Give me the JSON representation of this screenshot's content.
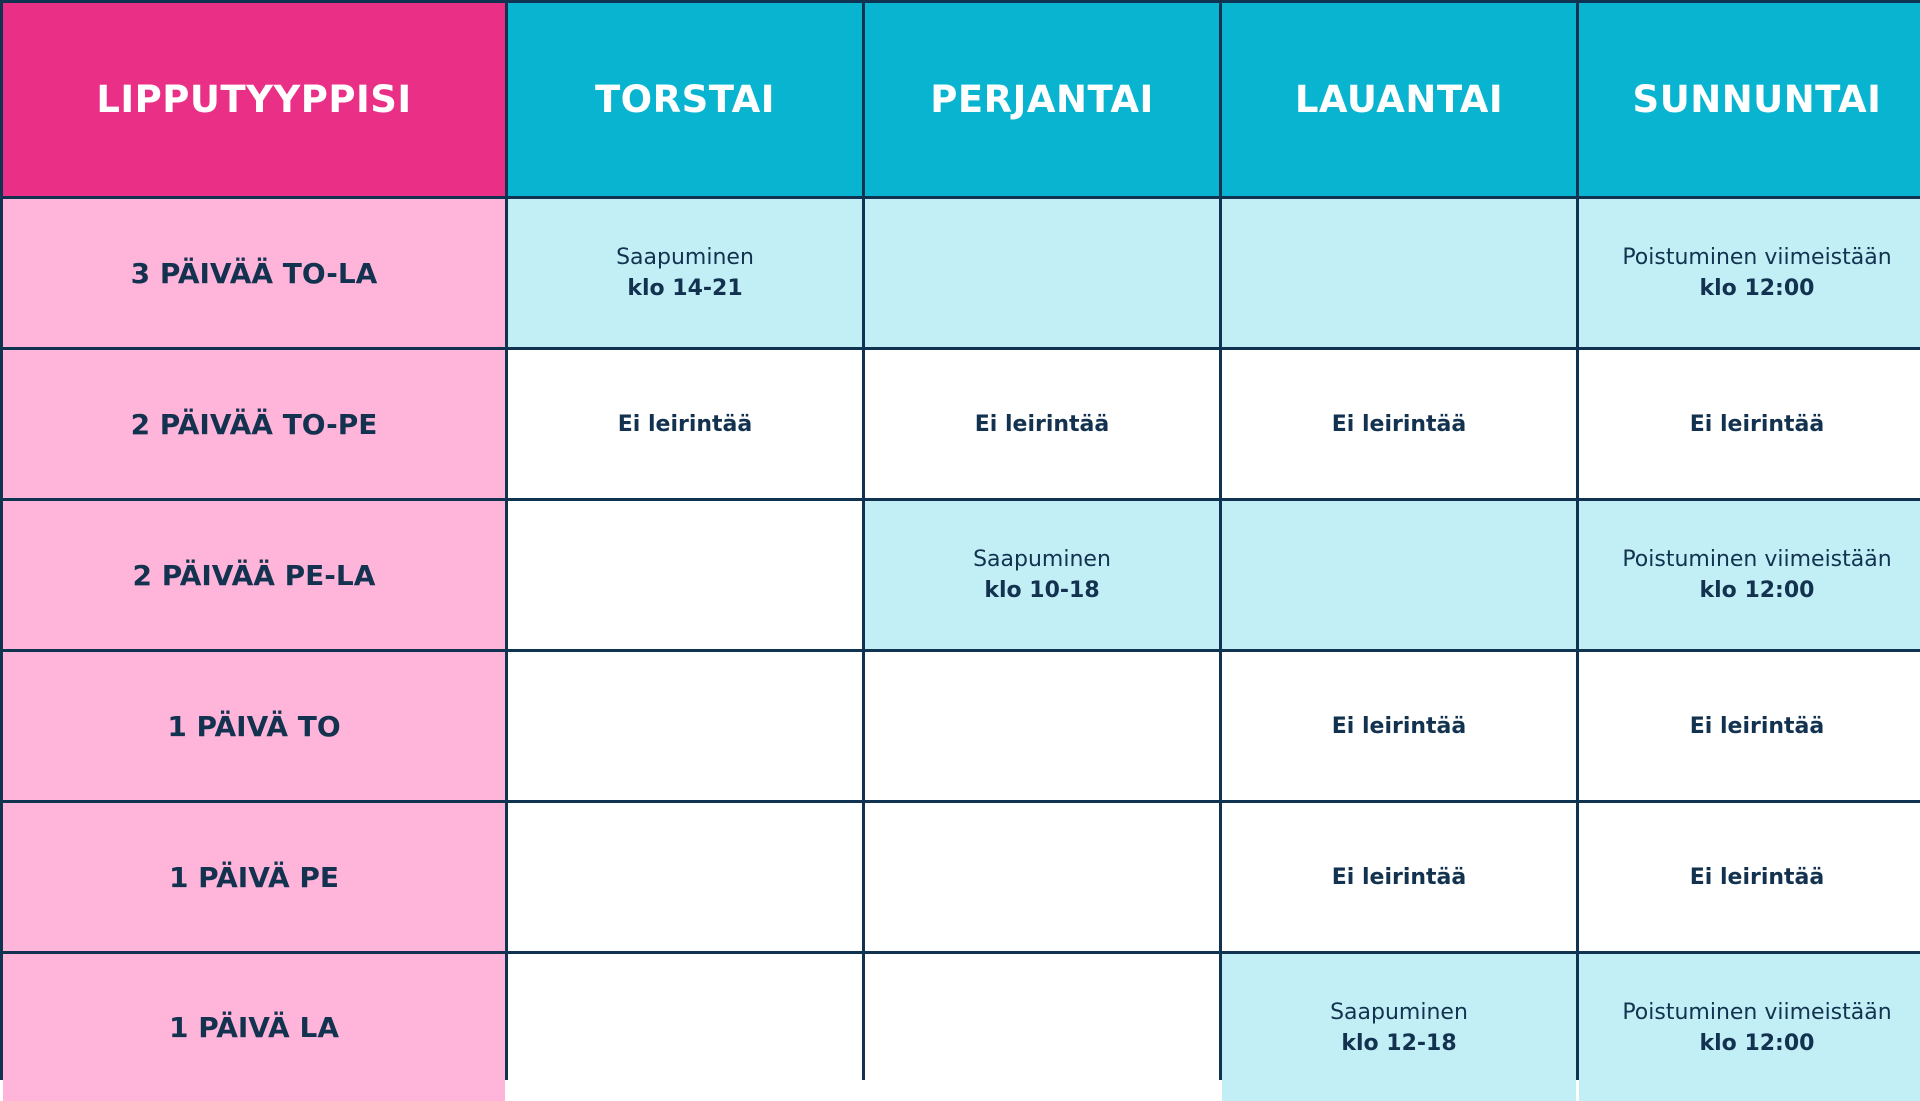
{
  "colors": {
    "header_type_bg": "#ea2f86",
    "header_day_bg": "#08b4cf",
    "row_label_bg": "#ffb5d9",
    "highlight_bg": "#c2eff6",
    "plain_bg": "#ffffff",
    "grid_line": "#0f3350",
    "text": "#12324f"
  },
  "headers": [
    "LIPPUTYYPPISI",
    "TORSTAI",
    "PERJANTAI",
    "LAUANTAI",
    "SUNNUNTAI"
  ],
  "rows": [
    {
      "label": "3 PÄIVÄÄ TO-LA",
      "cells": [
        {
          "highlight": true,
          "line1": "Saapuminen",
          "line2": "klo 14-21"
        },
        {
          "highlight": true,
          "line1": "",
          "line2": ""
        },
        {
          "highlight": true,
          "line1": "",
          "line2": ""
        },
        {
          "highlight": true,
          "line1": "Poistuminen viimeistään",
          "line2": "klo 12:00"
        }
      ]
    },
    {
      "label": "2 PÄIVÄÄ TO-PE",
      "cells": [
        {
          "highlight": false,
          "line1": "",
          "line2": "Ei leirintää"
        },
        {
          "highlight": false,
          "line1": "",
          "line2": "Ei leirintää"
        },
        {
          "highlight": false,
          "line1": "",
          "line2": "Ei leirintää"
        },
        {
          "highlight": false,
          "line1": "",
          "line2": "Ei leirintää"
        }
      ]
    },
    {
      "label": "2 PÄIVÄÄ PE-LA",
      "cells": [
        {
          "highlight": false,
          "line1": "",
          "line2": ""
        },
        {
          "highlight": true,
          "line1": "Saapuminen",
          "line2": "klo 10-18"
        },
        {
          "highlight": true,
          "line1": "",
          "line2": ""
        },
        {
          "highlight": true,
          "line1": "Poistuminen viimeistään",
          "line2": "klo 12:00"
        }
      ]
    },
    {
      "label": "1 PÄIVÄ TO",
      "cells": [
        {
          "highlight": false,
          "line1": "",
          "line2": ""
        },
        {
          "highlight": false,
          "line1": "",
          "line2": ""
        },
        {
          "highlight": false,
          "line1": "",
          "line2": "Ei leirintää"
        },
        {
          "highlight": false,
          "line1": "",
          "line2": "Ei leirintää"
        }
      ]
    },
    {
      "label": "1 PÄIVÄ PE",
      "cells": [
        {
          "highlight": false,
          "line1": "",
          "line2": ""
        },
        {
          "highlight": false,
          "line1": "",
          "line2": ""
        },
        {
          "highlight": false,
          "line1": "",
          "line2": "Ei leirintää"
        },
        {
          "highlight": false,
          "line1": "",
          "line2": "Ei leirintää"
        }
      ]
    },
    {
      "label": "1 PÄIVÄ LA",
      "cells": [
        {
          "highlight": false,
          "line1": "",
          "line2": ""
        },
        {
          "highlight": false,
          "line1": "",
          "line2": ""
        },
        {
          "highlight": true,
          "line1": "Saapuminen",
          "line2": "klo 12-18"
        },
        {
          "highlight": true,
          "line1": "Poistuminen viimeistään",
          "line2": "klo 12:00"
        }
      ]
    }
  ]
}
